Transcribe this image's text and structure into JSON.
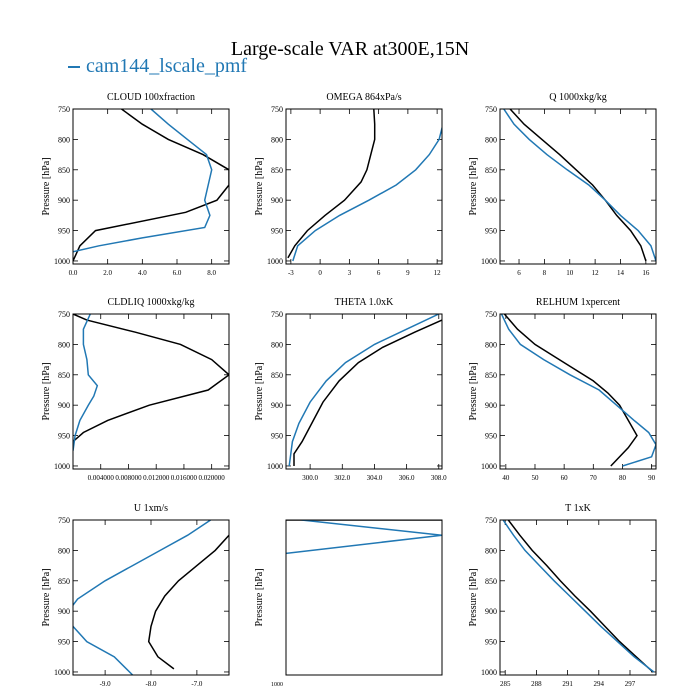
{
  "figure": {
    "title": "Large-scale VAR at300E,15N",
    "legend": [
      {
        "label": "cam144_lscale_pmf",
        "color": "#2178b4"
      }
    ]
  },
  "colors": {
    "model": "#2178b4",
    "obs": "#000000"
  },
  "chart_data": [
    {
      "type": "line",
      "title": "CLOUD  100xfraction",
      "xlabel": "",
      "ylabel": "Pressure [hPa]",
      "xlim": [
        0,
        9
      ],
      "ylim": [
        1005,
        750
      ],
      "xticks": [
        0,
        2,
        4,
        6,
        8
      ],
      "xticklabels": [
        "0.0",
        "2.0",
        "4.0",
        "6.0",
        "8.0"
      ],
      "yticks": [
        750,
        800,
        850,
        900,
        950,
        1000
      ],
      "series": [
        {
          "color": "#000000",
          "points": [
            [
              2.8,
              750
            ],
            [
              4.0,
              775
            ],
            [
              5.5,
              800
            ],
            [
              7.5,
              825
            ],
            [
              9.0,
              850
            ],
            [
              9.0,
              875
            ],
            [
              8.3,
              900
            ],
            [
              6.5,
              920
            ],
            [
              1.3,
              950
            ],
            [
              0.4,
              975
            ],
            [
              0.0,
              1000
            ]
          ]
        },
        {
          "color": "#2178b4",
          "points": [
            [
              4.5,
              750
            ],
            [
              5.5,
              775
            ],
            [
              6.6,
              800
            ],
            [
              7.7,
              825
            ],
            [
              8.0,
              850
            ],
            [
              7.8,
              875
            ],
            [
              7.6,
              900
            ],
            [
              7.9,
              925
            ],
            [
              7.6,
              945
            ],
            [
              4.0,
              962
            ],
            [
              1.5,
              975
            ],
            [
              0.0,
              985
            ]
          ]
        }
      ]
    },
    {
      "type": "line",
      "title": "OMEGA  864xPa/s",
      "xlabel": "",
      "ylabel": "Pressure [hPa]",
      "xlim": [
        -3.5,
        12.5
      ],
      "ylim": [
        1005,
        750
      ],
      "xticks": [
        -3,
        0,
        3,
        6,
        9,
        12
      ],
      "xticklabels": [
        "-3",
        "0",
        "3",
        "6",
        "9",
        "12"
      ],
      "yticks": [
        750,
        800,
        850,
        900,
        950,
        1000
      ],
      "series": [
        {
          "color": "#000000",
          "points": [
            [
              5.5,
              750
            ],
            [
              5.6,
              775
            ],
            [
              5.6,
              800
            ],
            [
              5.2,
              825
            ],
            [
              4.8,
              850
            ],
            [
              4.2,
              870
            ],
            [
              2.5,
              900
            ],
            [
              0.5,
              925
            ],
            [
              -1.3,
              950
            ],
            [
              -2.6,
              975
            ],
            [
              -3.3,
              995
            ]
          ]
        },
        {
          "color": "#2178b4",
          "points": [
            [
              12.6,
              750
            ],
            [
              12.6,
              775
            ],
            [
              12.2,
              800
            ],
            [
              11.2,
              825
            ],
            [
              9.8,
              850
            ],
            [
              7.8,
              875
            ],
            [
              5.0,
              900
            ],
            [
              2.0,
              925
            ],
            [
              -0.5,
              950
            ],
            [
              -2.3,
              975
            ],
            [
              -2.8,
              1000
            ]
          ]
        }
      ]
    },
    {
      "type": "line",
      "title": "Q  1000xkg/kg",
      "xlabel": "",
      "ylabel": "Pressure [hPa]",
      "xlim": [
        4.5,
        16.8
      ],
      "ylim": [
        1005,
        750
      ],
      "xticks": [
        6,
        8,
        10,
        12,
        14,
        16
      ],
      "xticklabels": [
        "6",
        "8",
        "10",
        "12",
        "14",
        "16"
      ],
      "yticks": [
        750,
        800,
        850,
        900,
        950,
        1000
      ],
      "series": [
        {
          "color": "#000000",
          "points": [
            [
              5.3,
              750
            ],
            [
              6.4,
              775
            ],
            [
              7.8,
              800
            ],
            [
              9.2,
              825
            ],
            [
              10.5,
              850
            ],
            [
              11.8,
              875
            ],
            [
              12.8,
              900
            ],
            [
              13.7,
              925
            ],
            [
              14.8,
              950
            ],
            [
              15.6,
              975
            ],
            [
              16.0,
              1000
            ]
          ]
        },
        {
          "color": "#2178b4",
          "points": [
            [
              4.8,
              750
            ],
            [
              5.6,
              775
            ],
            [
              6.8,
              800
            ],
            [
              8.2,
              825
            ],
            [
              9.8,
              850
            ],
            [
              11.5,
              875
            ],
            [
              12.8,
              900
            ],
            [
              14.0,
              925
            ],
            [
              15.4,
              950
            ],
            [
              16.4,
              975
            ],
            [
              16.8,
              1000
            ]
          ]
        }
      ]
    },
    {
      "type": "line",
      "title": "CLDLIQ  1000xkg/kg",
      "xlabel": "",
      "ylabel": "Pressure [hPa]",
      "xlim": [
        0,
        0.0225
      ],
      "ylim": [
        1005,
        750
      ],
      "xticks": [
        0.004,
        0.008,
        0.012,
        0.016,
        0.02
      ],
      "xticklabels": [
        "0.004000",
        "0.008000",
        "0.012000",
        "0.016000",
        "0.020000"
      ],
      "yticks": [
        750,
        800,
        850,
        900,
        950,
        1000
      ],
      "series": [
        {
          "color": "#000000",
          "points": [
            [
              0.0,
              750
            ],
            [
              0.002,
              760
            ],
            [
              0.009,
              780
            ],
            [
              0.0155,
              800
            ],
            [
              0.02,
              825
            ],
            [
              0.0225,
              850
            ],
            [
              0.0195,
              875
            ],
            [
              0.011,
              900
            ],
            [
              0.005,
              925
            ],
            [
              0.0015,
              945
            ],
            [
              0.0,
              960
            ]
          ]
        },
        {
          "color": "#2178b4",
          "points": [
            [
              0.0025,
              750
            ],
            [
              0.0015,
              775
            ],
            [
              0.0015,
              800
            ],
            [
              0.002,
              825
            ],
            [
              0.0022,
              850
            ],
            [
              0.0035,
              868
            ],
            [
              0.003,
              885
            ],
            [
              0.0022,
              900
            ],
            [
              0.001,
              925
            ],
            [
              0.0003,
              950
            ],
            [
              0.0,
              975
            ]
          ]
        }
      ]
    },
    {
      "type": "line",
      "title": "THETA  1.0xK",
      "xlabel": "",
      "ylabel": "Pressure [hPa]",
      "xlim": [
        298.5,
        308.2
      ],
      "ylim": [
        1005,
        750
      ],
      "xticks": [
        300,
        302,
        304,
        306,
        308
      ],
      "xticklabels": [
        "300.0",
        "302.0",
        "304.0",
        "306.0",
        "308.0"
      ],
      "yticks": [
        750,
        800,
        850,
        900,
        950,
        1000
      ],
      "series": [
        {
          "color": "#000000",
          "points": [
            [
              308.2,
              760
            ],
            [
              306.5,
              780
            ],
            [
              304.5,
              805
            ],
            [
              303.0,
              830
            ],
            [
              301.8,
              860
            ],
            [
              300.8,
              895
            ],
            [
              300.0,
              935
            ],
            [
              299.5,
              960
            ],
            [
              299.0,
              980
            ],
            [
              299.0,
              1000
            ]
          ]
        },
        {
          "color": "#2178b4",
          "points": [
            [
              308.0,
              750
            ],
            [
              306.0,
              775
            ],
            [
              304.0,
              800
            ],
            [
              302.2,
              830
            ],
            [
              301.0,
              860
            ],
            [
              300.0,
              895
            ],
            [
              299.3,
              930
            ],
            [
              298.9,
              960
            ],
            [
              298.7,
              1000
            ]
          ]
        }
      ]
    },
    {
      "type": "line",
      "title": "RELHUM  1xpercent",
      "xlabel": "",
      "ylabel": "Pressure [hPa]",
      "xlim": [
        38,
        91.5
      ],
      "ylim": [
        1005,
        750
      ],
      "xticks": [
        40,
        50,
        60,
        70,
        80,
        90
      ],
      "xticklabels": [
        "40",
        "50",
        "60",
        "70",
        "80",
        "90"
      ],
      "yticks": [
        750,
        800,
        850,
        900,
        950,
        1000
      ],
      "series": [
        {
          "color": "#000000",
          "points": [
            [
              39.5,
              750
            ],
            [
              44.0,
              775
            ],
            [
              50.0,
              800
            ],
            [
              60.0,
              830
            ],
            [
              70.0,
              860
            ],
            [
              75.0,
              880
            ],
            [
              79.0,
              900
            ],
            [
              82.0,
              925
            ],
            [
              85.0,
              950
            ],
            [
              82.0,
              970
            ],
            [
              76.0,
              1000
            ]
          ]
        },
        {
          "color": "#2178b4",
          "points": [
            [
              38.5,
              750
            ],
            [
              41.0,
              775
            ],
            [
              45.0,
              800
            ],
            [
              53.0,
              825
            ],
            [
              62.0,
              850
            ],
            [
              72.0,
              875
            ],
            [
              78.0,
              900
            ],
            [
              84.0,
              925
            ],
            [
              89.0,
              945
            ],
            [
              91.5,
              965
            ],
            [
              90.0,
              985
            ],
            [
              80.0,
              1000
            ]
          ]
        }
      ]
    },
    {
      "type": "line",
      "title": "U  1xm/s",
      "xlabel": "",
      "ylabel": "Pressure [hPa]",
      "xlim": [
        -9.7,
        -6.3
      ],
      "ylim": [
        1005,
        750
      ],
      "xticks": [
        -9,
        -8,
        -7
      ],
      "xticklabels": [
        "-9.0",
        "-8.0",
        "-7.0"
      ],
      "yticks": [
        750,
        800,
        850,
        900,
        950,
        1000
      ],
      "series": [
        {
          "color": "#000000",
          "points": [
            [
              -6.3,
              775
            ],
            [
              -6.6,
              800
            ],
            [
              -7.0,
              825
            ],
            [
              -7.4,
              850
            ],
            [
              -7.7,
              875
            ],
            [
              -7.9,
              900
            ],
            [
              -8.0,
              925
            ],
            [
              -8.05,
              950
            ],
            [
              -7.85,
              975
            ],
            [
              -7.5,
              995
            ]
          ]
        },
        {
          "color": "#2178b4",
          "points": [
            [
              -6.7,
              750
            ],
            [
              -7.2,
              775
            ],
            [
              -7.8,
              800
            ],
            [
              -8.4,
              825
            ],
            [
              -9.0,
              850
            ],
            [
              -9.6,
              880
            ],
            [
              -9.8,
              900
            ],
            [
              -9.7,
              925
            ],
            [
              -9.4,
              950
            ],
            [
              -8.8,
              975
            ],
            [
              -8.4,
              1005
            ]
          ]
        }
      ]
    },
    {
      "type": "line",
      "title": "",
      "xlabel": "",
      "ylabel": "Pressure [hPa]",
      "xlim": [
        0,
        1
      ],
      "ylim": [
        1005,
        750
      ],
      "xticks": [],
      "xticklabels": [],
      "yticks": [],
      "bottom_ticklabel": "1000",
      "series": [
        {
          "color": "#000000",
          "points": [
            [
              0.0,
              750
            ],
            [
              1.0,
              750
            ]
          ]
        },
        {
          "color": "#2178b4",
          "points": [
            [
              0.1,
              750
            ],
            [
              1.0,
              775
            ],
            [
              0.0,
              805
            ]
          ]
        }
      ]
    },
    {
      "type": "line",
      "title": "T  1xK",
      "xlabel": "",
      "ylabel": "Pressure [hPa]",
      "xlim": [
        284.5,
        299.5
      ],
      "ylim": [
        1005,
        750
      ],
      "xticks": [
        285,
        288,
        291,
        294,
        297
      ],
      "xticklabels": [
        "285",
        "288",
        "291",
        "294",
        "297"
      ],
      "yticks": [
        750,
        800,
        850,
        900,
        950,
        1000
      ],
      "series": [
        {
          "color": "#000000",
          "points": [
            [
              285.3,
              750
            ],
            [
              286.4,
              775
            ],
            [
              287.6,
              800
            ],
            [
              289.0,
              825
            ],
            [
              290.3,
              850
            ],
            [
              291.7,
              875
            ],
            [
              293.2,
              900
            ],
            [
              294.6,
              925
            ],
            [
              296.0,
              950
            ],
            [
              297.6,
              975
            ],
            [
              299.2,
              1000
            ]
          ]
        },
        {
          "color": "#2178b4",
          "points": [
            [
              284.8,
              750
            ],
            [
              285.8,
              775
            ],
            [
              286.9,
              800
            ],
            [
              288.3,
              825
            ],
            [
              289.7,
              850
            ],
            [
              291.2,
              875
            ],
            [
              292.7,
              900
            ],
            [
              294.2,
              925
            ],
            [
              295.8,
              950
            ],
            [
              297.4,
              975
            ],
            [
              299.3,
              1000
            ]
          ]
        }
      ]
    }
  ]
}
